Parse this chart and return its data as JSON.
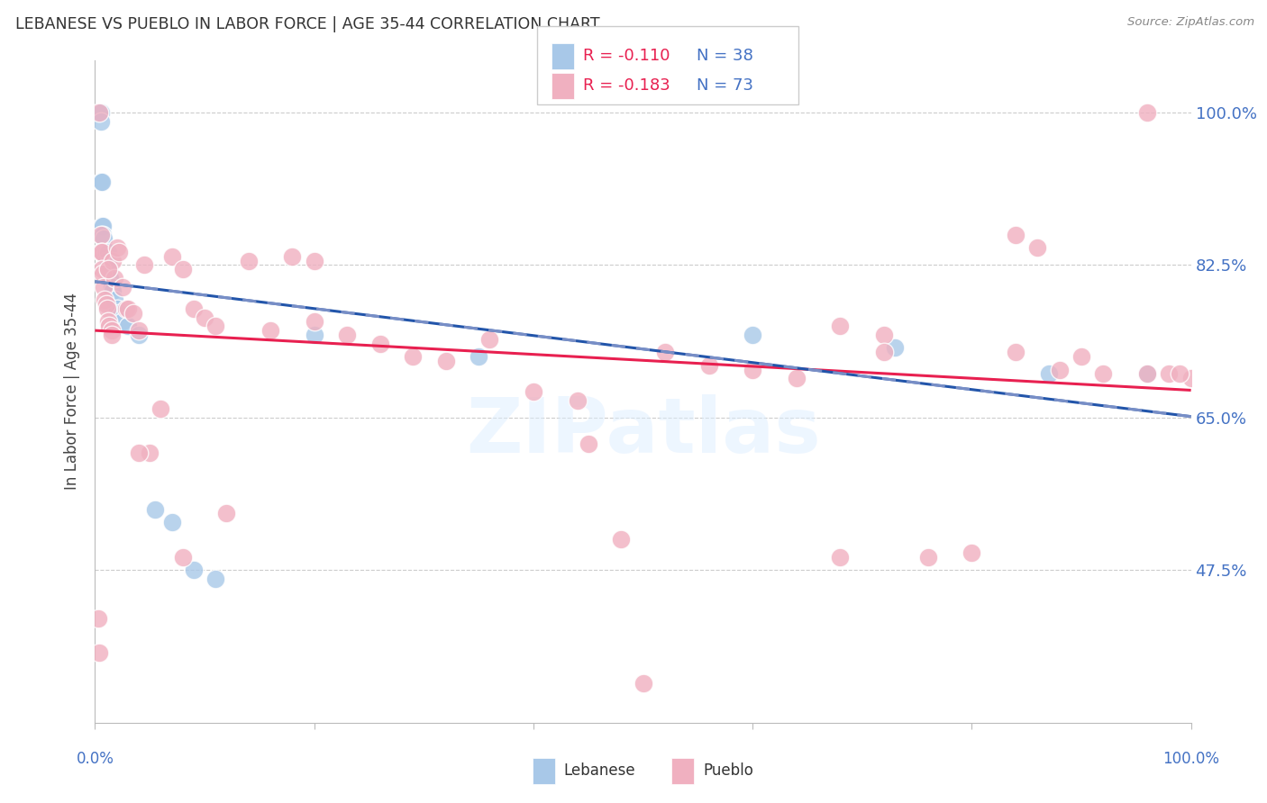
{
  "title": "LEBANESE VS PUEBLO IN LABOR FORCE | AGE 35-44 CORRELATION CHART",
  "source": "Source: ZipAtlas.com",
  "ylabel": "In Labor Force | Age 35-44",
  "ytick_labels": [
    "100.0%",
    "82.5%",
    "65.0%",
    "47.5%"
  ],
  "ytick_values": [
    1.0,
    0.825,
    0.65,
    0.475
  ],
  "xlim": [
    0.0,
    1.0
  ],
  "ylim": [
    0.3,
    1.06
  ],
  "legend_blue_r": "R = -0.110",
  "legend_blue_n": "N = 38",
  "legend_pink_r": "R = -0.183",
  "legend_pink_n": "N = 73",
  "legend_label_blue": "Lebanese",
  "legend_label_pink": "Pueblo",
  "blue_color": "#a8c8e8",
  "pink_color": "#f0b0c0",
  "trend_blue_color": "#2255aa",
  "trend_pink_color": "#e82050",
  "blue_x": [
    0.004,
    0.005,
    0.005,
    0.005,
    0.006,
    0.006,
    0.007,
    0.007,
    0.008,
    0.008,
    0.009,
    0.009,
    0.01,
    0.01,
    0.011,
    0.011,
    0.012,
    0.012,
    0.013,
    0.014,
    0.015,
    0.016,
    0.018,
    0.02,
    0.022,
    0.025,
    0.03,
    0.04,
    0.055,
    0.07,
    0.09,
    0.11,
    0.2,
    0.35,
    0.6,
    0.73,
    0.87,
    0.96
  ],
  "blue_y": [
    1.0,
    1.0,
    0.99,
    0.92,
    0.92,
    0.87,
    0.87,
    0.86,
    0.855,
    0.84,
    0.84,
    0.835,
    0.84,
    0.83,
    0.825,
    0.82,
    0.84,
    0.825,
    0.82,
    0.81,
    0.8,
    0.795,
    0.785,
    0.775,
    0.77,
    0.76,
    0.755,
    0.745,
    0.545,
    0.53,
    0.475,
    0.465,
    0.745,
    0.72,
    0.745,
    0.73,
    0.7,
    0.7
  ],
  "pink_x": [
    0.003,
    0.004,
    0.005,
    0.005,
    0.006,
    0.006,
    0.007,
    0.008,
    0.009,
    0.01,
    0.011,
    0.012,
    0.013,
    0.015,
    0.016,
    0.018,
    0.02,
    0.022,
    0.025,
    0.028,
    0.03,
    0.035,
    0.04,
    0.045,
    0.05,
    0.06,
    0.07,
    0.08,
    0.09,
    0.1,
    0.11,
    0.12,
    0.14,
    0.16,
    0.18,
    0.2,
    0.23,
    0.26,
    0.29,
    0.32,
    0.36,
    0.4,
    0.44,
    0.48,
    0.52,
    0.56,
    0.6,
    0.64,
    0.68,
    0.72,
    0.76,
    0.8,
    0.84,
    0.88,
    0.92,
    0.96,
    0.98,
    1.0,
    0.004,
    0.012,
    0.015,
    0.04,
    0.08,
    0.2,
    0.45,
    0.5,
    0.68,
    0.72,
    0.84,
    0.86,
    0.9,
    0.96,
    0.99
  ],
  "pink_y": [
    0.42,
    1.0,
    0.86,
    0.84,
    0.84,
    0.82,
    0.815,
    0.8,
    0.785,
    0.78,
    0.775,
    0.76,
    0.755,
    0.75,
    0.83,
    0.81,
    0.845,
    0.84,
    0.8,
    0.775,
    0.775,
    0.77,
    0.75,
    0.825,
    0.61,
    0.66,
    0.835,
    0.82,
    0.775,
    0.765,
    0.755,
    0.54,
    0.83,
    0.75,
    0.835,
    0.76,
    0.745,
    0.735,
    0.72,
    0.715,
    0.74,
    0.68,
    0.67,
    0.51,
    0.725,
    0.71,
    0.705,
    0.695,
    0.755,
    0.745,
    0.49,
    0.495,
    0.725,
    0.705,
    0.7,
    1.0,
    0.7,
    0.695,
    0.38,
    0.82,
    0.745,
    0.61,
    0.49,
    0.83,
    0.62,
    0.345,
    0.49,
    0.725,
    0.86,
    0.845,
    0.72,
    0.7,
    0.7
  ]
}
